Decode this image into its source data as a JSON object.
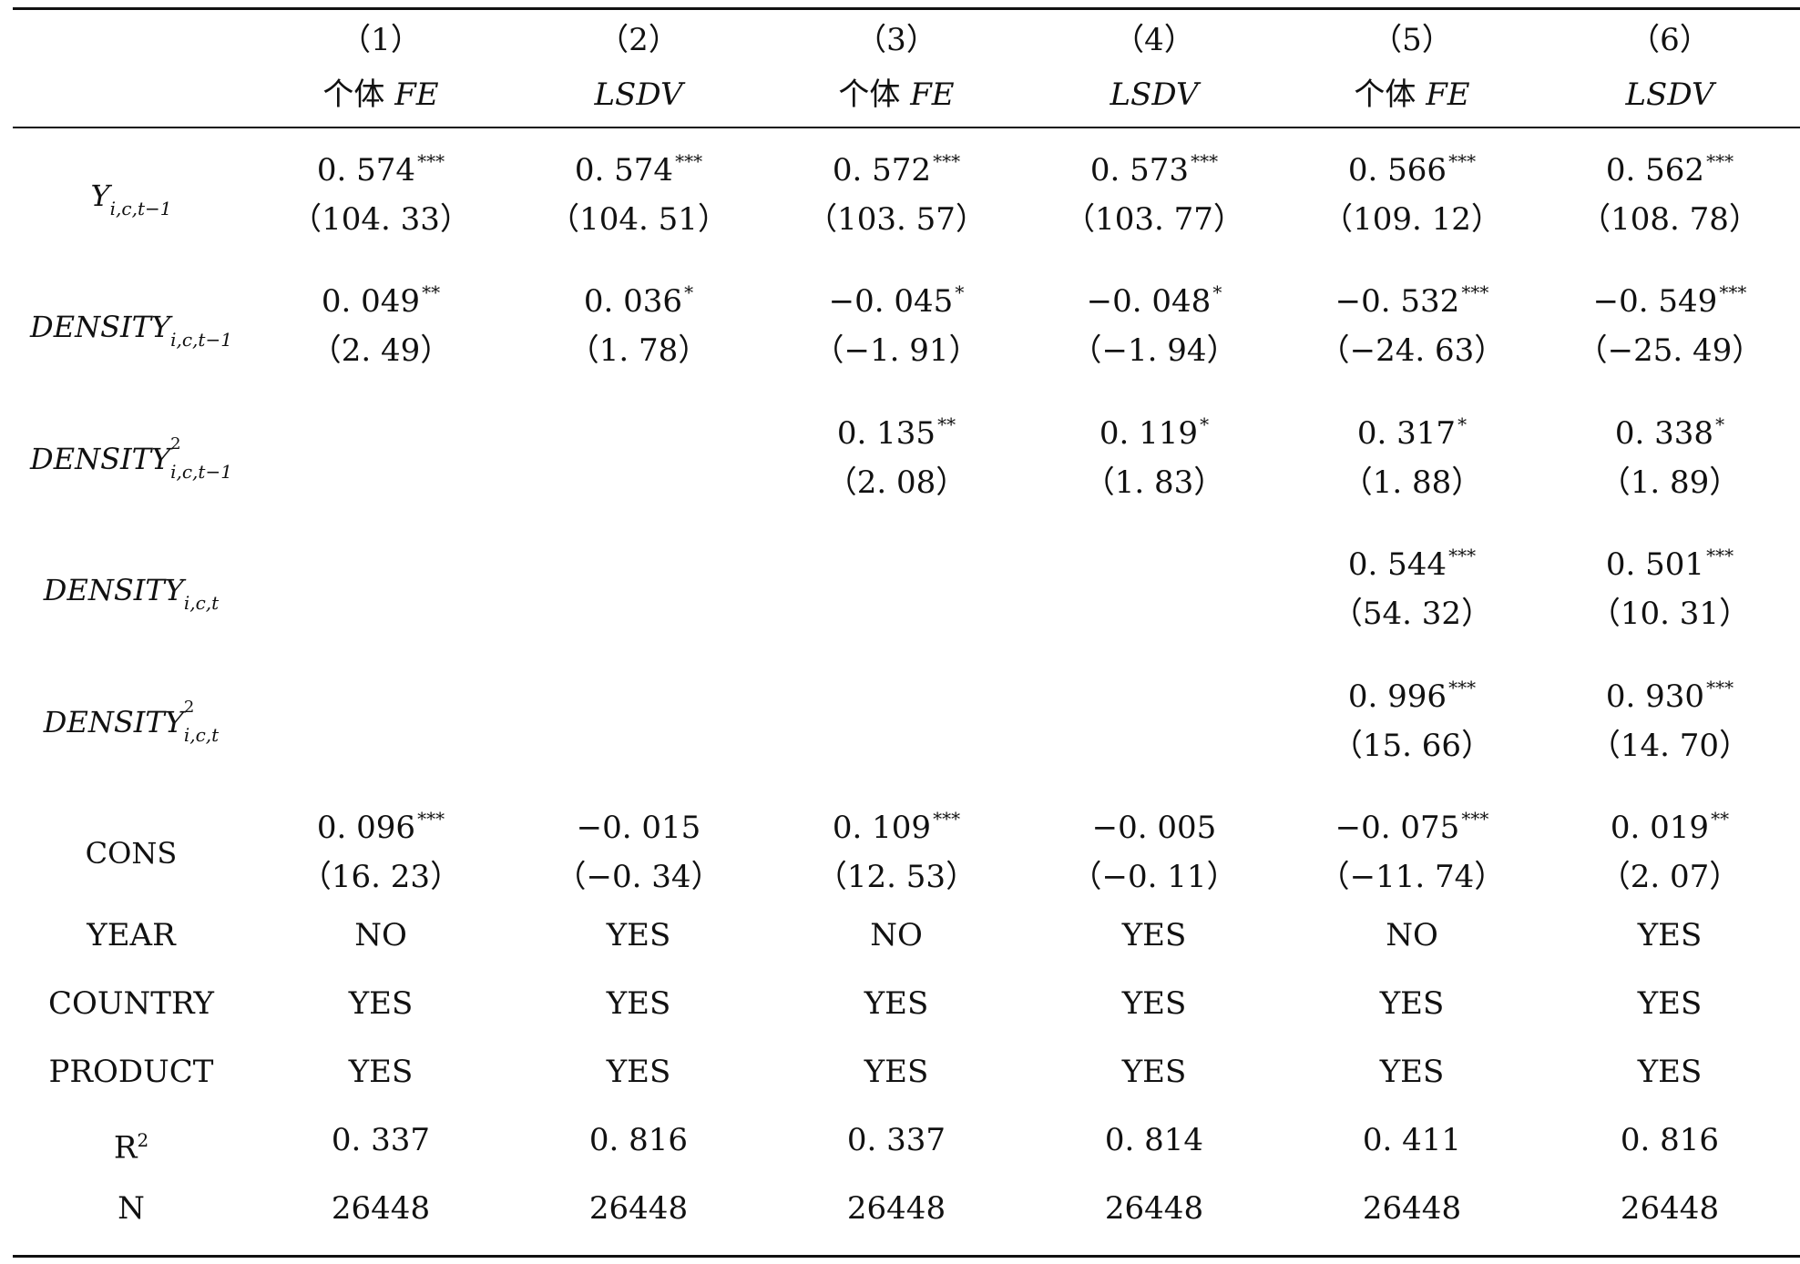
{
  "columns": [
    {
      "number": "（1）",
      "method_cn": "个体",
      "method_code": "FE"
    },
    {
      "number": "（2）",
      "method_cn": "",
      "method_code": "LSDV"
    },
    {
      "number": "（3）",
      "method_cn": "个体",
      "method_code": "FE"
    },
    {
      "number": "（4）",
      "method_cn": "",
      "method_code": "LSDV"
    },
    {
      "number": "（5）",
      "method_cn": "个体",
      "method_code": "FE"
    },
    {
      "number": "（6）",
      "method_cn": "",
      "method_code": "LSDV"
    }
  ],
  "coef_rows": [
    {
      "var": "Y",
      "exponent": "",
      "subscript": "i,c,t−1",
      "cells": [
        {
          "coef": "0. 574",
          "stars": "***",
          "t": "（104. 33）"
        },
        {
          "coef": "0. 574",
          "stars": "***",
          "t": "（104. 51）"
        },
        {
          "coef": "0. 572",
          "stars": "***",
          "t": "（103. 57）"
        },
        {
          "coef": "0. 573",
          "stars": "***",
          "t": "（103. 77）"
        },
        {
          "coef": "0. 566",
          "stars": "***",
          "t": "（109. 12）"
        },
        {
          "coef": "0. 562",
          "stars": "***",
          "t": "（108. 78）"
        }
      ]
    },
    {
      "var": "DENSITY",
      "exponent": "",
      "subscript": "i,c,t−1",
      "cells": [
        {
          "coef": "0. 049",
          "stars": "**",
          "t": "（2. 49）"
        },
        {
          "coef": "0. 036",
          "stars": "*",
          "t": "（1. 78）"
        },
        {
          "coef": "−0. 045",
          "stars": "*",
          "t": "（−1. 91）"
        },
        {
          "coef": "−0. 048",
          "stars": "*",
          "t": "（−1. 94）"
        },
        {
          "coef": "−0. 532",
          "stars": "***",
          "t": "（−24. 63）"
        },
        {
          "coef": "−0. 549",
          "stars": "***",
          "t": "（−25. 49）"
        }
      ]
    },
    {
      "var": "DENSITY",
      "exponent": "2",
      "subscript": "i,c,t−1",
      "cells": [
        {
          "coef": "",
          "stars": "",
          "t": ""
        },
        {
          "coef": "",
          "stars": "",
          "t": ""
        },
        {
          "coef": "0. 135",
          "stars": "**",
          "t": "（2. 08）"
        },
        {
          "coef": "0. 119",
          "stars": "*",
          "t": "（1. 83）"
        },
        {
          "coef": "0. 317",
          "stars": "*",
          "t": "（1. 88）"
        },
        {
          "coef": "0. 338",
          "stars": "*",
          "t": "（1. 89）"
        }
      ]
    },
    {
      "var": "DENSITY",
      "exponent": "",
      "subscript": "i,c,t",
      "cells": [
        {
          "coef": "",
          "stars": "",
          "t": ""
        },
        {
          "coef": "",
          "stars": "",
          "t": ""
        },
        {
          "coef": "",
          "stars": "",
          "t": ""
        },
        {
          "coef": "",
          "stars": "",
          "t": ""
        },
        {
          "coef": "0. 544",
          "stars": "***",
          "t": "（54. 32）"
        },
        {
          "coef": "0. 501",
          "stars": "***",
          "t": "（10. 31）"
        }
      ]
    },
    {
      "var": "DENSITY",
      "exponent": "2",
      "subscript": "i,c,t",
      "cells": [
        {
          "coef": "",
          "stars": "",
          "t": ""
        },
        {
          "coef": "",
          "stars": "",
          "t": ""
        },
        {
          "coef": "",
          "stars": "",
          "t": ""
        },
        {
          "coef": "",
          "stars": "",
          "t": ""
        },
        {
          "coef": "0. 996",
          "stars": "***",
          "t": "（15. 66）"
        },
        {
          "coef": "0. 930",
          "stars": "***",
          "t": "（14. 70）"
        }
      ]
    },
    {
      "var": "CONS",
      "exponent": "",
      "subscript": "",
      "cells": [
        {
          "coef": "0. 096",
          "stars": "***",
          "t": "（16. 23）"
        },
        {
          "coef": "−0. 015",
          "stars": "",
          "t": "（−0. 34）"
        },
        {
          "coef": "0. 109",
          "stars": "***",
          "t": "（12. 53）"
        },
        {
          "coef": "−0. 005",
          "stars": "",
          "t": "（−0. 11）"
        },
        {
          "coef": "−0. 075",
          "stars": "***",
          "t": "（−11. 74）"
        },
        {
          "coef": "0. 019",
          "stars": "**",
          "t": "（2. 07）"
        }
      ]
    }
  ],
  "stat_rows": [
    {
      "label": "YEAR",
      "label_sup": "",
      "values": [
        "NO",
        "YES",
        "NO",
        "YES",
        "NO",
        "YES"
      ]
    },
    {
      "label": "COUNTRY",
      "label_sup": "",
      "values": [
        "YES",
        "YES",
        "YES",
        "YES",
        "YES",
        "YES"
      ]
    },
    {
      "label": "PRODUCT",
      "label_sup": "",
      "values": [
        "YES",
        "YES",
        "YES",
        "YES",
        "YES",
        "YES"
      ]
    },
    {
      "label": "R",
      "label_sup": "2",
      "values": [
        "0. 337",
        "0. 816",
        "0. 337",
        "0. 814",
        "0. 411",
        "0. 816"
      ]
    },
    {
      "label": "N",
      "label_sup": "",
      "values": [
        "26448",
        "26448",
        "26448",
        "26448",
        "26448",
        "26448"
      ]
    }
  ]
}
